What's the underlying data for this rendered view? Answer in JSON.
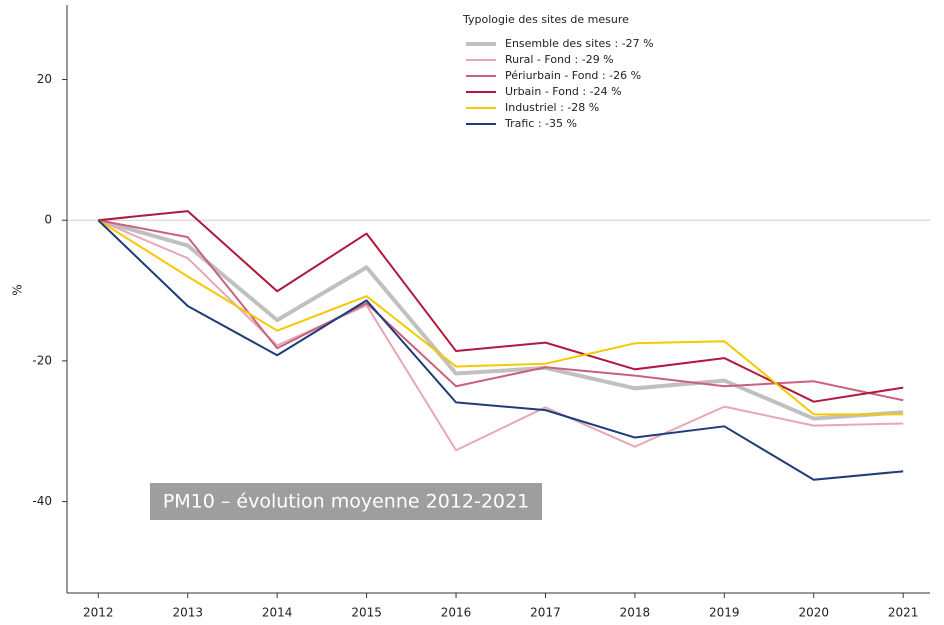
{
  "chart_data": {
    "type": "line",
    "y_label": "%",
    "annotation": "PM10 – évolution moyenne 2012-2021",
    "legend_title": "Typologie des sites de mesure",
    "legend": "top-center",
    "x": [
      2012,
      2013,
      2014,
      2015,
      2016,
      2017,
      2018,
      2019,
      2020,
      2021
    ],
    "xlim": [
      2011.65,
      2021.3
    ],
    "xticks": [
      2012,
      2013,
      2014,
      2015,
      2016,
      2017,
      2018,
      2019,
      2020,
      2021
    ],
    "ylim": [
      -53,
      30.6
    ],
    "yticks": [
      20,
      0,
      -20,
      -40
    ],
    "reference_line": 0,
    "series": [
      {
        "name": "Ensemble des sites : -27 %",
        "color": "#c0c0c0",
        "width": 4,
        "values": [
          0,
          -3.6,
          -14.2,
          -6.7,
          -21.8,
          -21,
          -23.9,
          -22.8,
          -28.2,
          -27.3
        ]
      },
      {
        "name": "Rural - Fond : -29 %",
        "color": "#e6a7b8",
        "width": 2,
        "values": [
          0,
          -5.4,
          -17.8,
          -12.1,
          -32.7,
          -26.6,
          -32.2,
          -26.5,
          -29.2,
          -28.9
        ]
      },
      {
        "name": "Périurbain - Fond : -26 %",
        "color": "#c9607c",
        "width": 2,
        "values": [
          0,
          -2.4,
          -18.2,
          -11.8,
          -23.6,
          -20.9,
          -22.1,
          -23.6,
          -22.9,
          -25.6
        ]
      },
      {
        "name": "Urbain - Fond : -24 %",
        "color": "#b0183c",
        "width": 2,
        "values": [
          0,
          1.3,
          -10.1,
          -1.9,
          -18.6,
          -17.4,
          -21.2,
          -19.6,
          -25.8,
          -23.8
        ]
      },
      {
        "name": "Industriel : -28 %",
        "color": "#f5c800",
        "width": 2,
        "values": [
          0,
          -8,
          -15.7,
          -10.8,
          -20.8,
          -20.4,
          -17.5,
          -17.2,
          -27.6,
          -27.6
        ]
      },
      {
        "name": "Trafic : -35 %",
        "color": "#1f3b7a",
        "width": 2,
        "values": [
          0,
          -12.2,
          -19.2,
          -11.4,
          -25.9,
          -27,
          -30.9,
          -29.3,
          -36.9,
          -35.7
        ]
      }
    ]
  }
}
